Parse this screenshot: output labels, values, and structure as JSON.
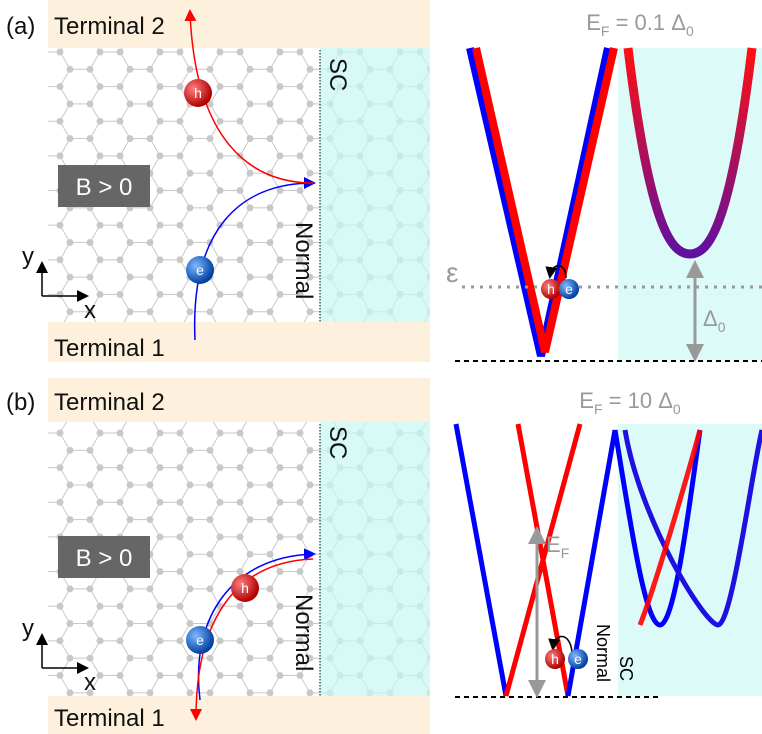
{
  "panel_a": {
    "label": "(a)",
    "terminal_top": "Terminal 2",
    "terminal_bottom": "Terminal 1",
    "sc": "SC",
    "normal": "Normal",
    "field": "B > 0",
    "hole": "h",
    "electron": "e",
    "axis_y": "y",
    "axis_x": "x",
    "spectrum": {
      "title": [
        "E",
        "F",
        " = 0.1 Δ",
        "0"
      ],
      "energy": "ε",
      "gap": [
        "Δ",
        "0"
      ],
      "hole": "h",
      "electron": "e"
    }
  },
  "panel_b": {
    "label": "(b)",
    "terminal_top": "Terminal 2",
    "terminal_bottom": "Terminal 1",
    "sc": "SC",
    "normal": "Normal",
    "field": "B > 0",
    "hole": "h",
    "electron": "e",
    "axis_y": "y",
    "axis_x": "x",
    "spectrum": {
      "title": [
        "E",
        "F",
        " = 10 Δ",
        "0"
      ],
      "fermi": [
        "E",
        "F"
      ],
      "hole": "h",
      "electron": "e",
      "normal": "Normal",
      "sc": "SC"
    }
  }
}
